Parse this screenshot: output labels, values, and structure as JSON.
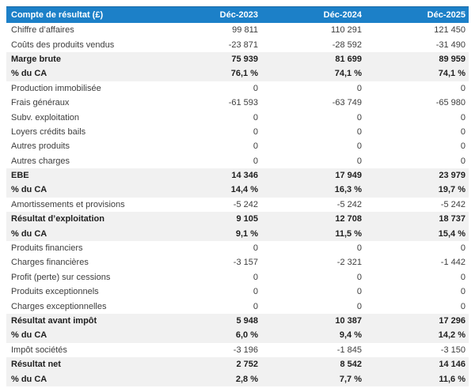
{
  "table": {
    "header": {
      "label": "Compte de résultat (£)",
      "columns": [
        "Déc-2023",
        "Déc-2024",
        "Déc-2025"
      ]
    },
    "rows": [
      {
        "label": "Chiffre d’affaires",
        "values": [
          "99 811",
          "110 291",
          "121 450"
        ],
        "emphasis": false
      },
      {
        "label": "Coûts des produits vendus",
        "values": [
          "-23 871",
          "-28 592",
          "-31 490"
        ],
        "emphasis": false
      },
      {
        "label": "Marge brute",
        "values": [
          "75 939",
          "81 699",
          "89 959"
        ],
        "emphasis": true
      },
      {
        "label": "% du CA",
        "values": [
          "76,1 %",
          "74,1 %",
          "74,1 %"
        ],
        "emphasis": true
      },
      {
        "label": "Production immobilisée",
        "values": [
          "0",
          "0",
          "0"
        ],
        "emphasis": false
      },
      {
        "label": "Frais généraux",
        "values": [
          "-61 593",
          "-63 749",
          "-65 980"
        ],
        "emphasis": false
      },
      {
        "label": "Subv. exploitation",
        "values": [
          "0",
          "0",
          "0"
        ],
        "emphasis": false
      },
      {
        "label": "Loyers crédits bails",
        "values": [
          "0",
          "0",
          "0"
        ],
        "emphasis": false
      },
      {
        "label": "Autres produits",
        "values": [
          "0",
          "0",
          "0"
        ],
        "emphasis": false
      },
      {
        "label": "Autres charges",
        "values": [
          "0",
          "0",
          "0"
        ],
        "emphasis": false
      },
      {
        "label": "EBE",
        "values": [
          "14 346",
          "17 949",
          "23 979"
        ],
        "emphasis": true
      },
      {
        "label": "% du CA",
        "values": [
          "14,4 %",
          "16,3 %",
          "19,7 %"
        ],
        "emphasis": true
      },
      {
        "label": "Amortissements et provisions",
        "values": [
          "-5 242",
          "-5 242",
          "-5 242"
        ],
        "emphasis": false
      },
      {
        "label": "Résultat d’exploitation",
        "values": [
          "9 105",
          "12 708",
          "18 737"
        ],
        "emphasis": true
      },
      {
        "label": "% du CA",
        "values": [
          "9,1 %",
          "11,5 %",
          "15,4 %"
        ],
        "emphasis": true
      },
      {
        "label": "Produits financiers",
        "values": [
          "0",
          "0",
          "0"
        ],
        "emphasis": false
      },
      {
        "label": "Charges financières",
        "values": [
          "-3 157",
          "-2 321",
          "-1 442"
        ],
        "emphasis": false
      },
      {
        "label": "Profit (perte) sur cessions",
        "values": [
          "0",
          "0",
          "0"
        ],
        "emphasis": false
      },
      {
        "label": "Produits exceptionnels",
        "values": [
          "0",
          "0",
          "0"
        ],
        "emphasis": false
      },
      {
        "label": "Charges exceptionnelles",
        "values": [
          "0",
          "0",
          "0"
        ],
        "emphasis": false
      },
      {
        "label": "Résultat avant impôt",
        "values": [
          "5 948",
          "10 387",
          "17 296"
        ],
        "emphasis": true
      },
      {
        "label": "% du CA",
        "values": [
          "6,0 %",
          "9,4 %",
          "14,2 %"
        ],
        "emphasis": true
      },
      {
        "label": "Impôt sociétés",
        "values": [
          "-3 196",
          "-1 845",
          "-3 150"
        ],
        "emphasis": false
      },
      {
        "label": "Résultat net",
        "values": [
          "2 752",
          "8 542",
          "14 146"
        ],
        "emphasis": true
      },
      {
        "label": "% du CA",
        "values": [
          "2,8 %",
          "7,7 %",
          "11,6 %"
        ],
        "emphasis": true
      }
    ]
  },
  "colors": {
    "header_bg": "#1c80c8",
    "header_text": "#ffffff",
    "emphasis_row_bg": "#f1f1f1",
    "normal_text": "#3d3d3d",
    "emphasis_text": "#1f1f1f"
  }
}
